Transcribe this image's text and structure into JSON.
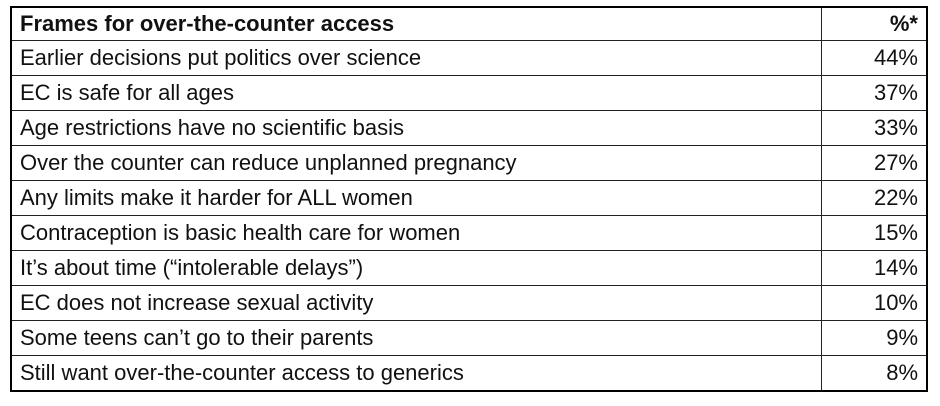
{
  "table": {
    "header": [
      "Frames for over-the-counter access",
      "%*"
    ],
    "rows": [
      [
        "Earlier decisions put politics over science",
        "44%"
      ],
      [
        "EC is safe for all ages",
        "37%"
      ],
      [
        "Age restrictions have no scientific basis",
        "33%"
      ],
      [
        "Over the counter can reduce unplanned pregnancy",
        "27%"
      ],
      [
        "Any limits make it harder for ALL women",
        "22%"
      ],
      [
        "Contraception is basic health care for women",
        "15%"
      ],
      [
        "It’s about time (“intolerable delays”)",
        "14%"
      ],
      [
        "EC does not increase sexual activity",
        "10%"
      ],
      [
        "Some teens can’t go to their parents",
        "9%"
      ],
      [
        "Still want over-the-counter access to generics",
        "8%"
      ]
    ]
  }
}
